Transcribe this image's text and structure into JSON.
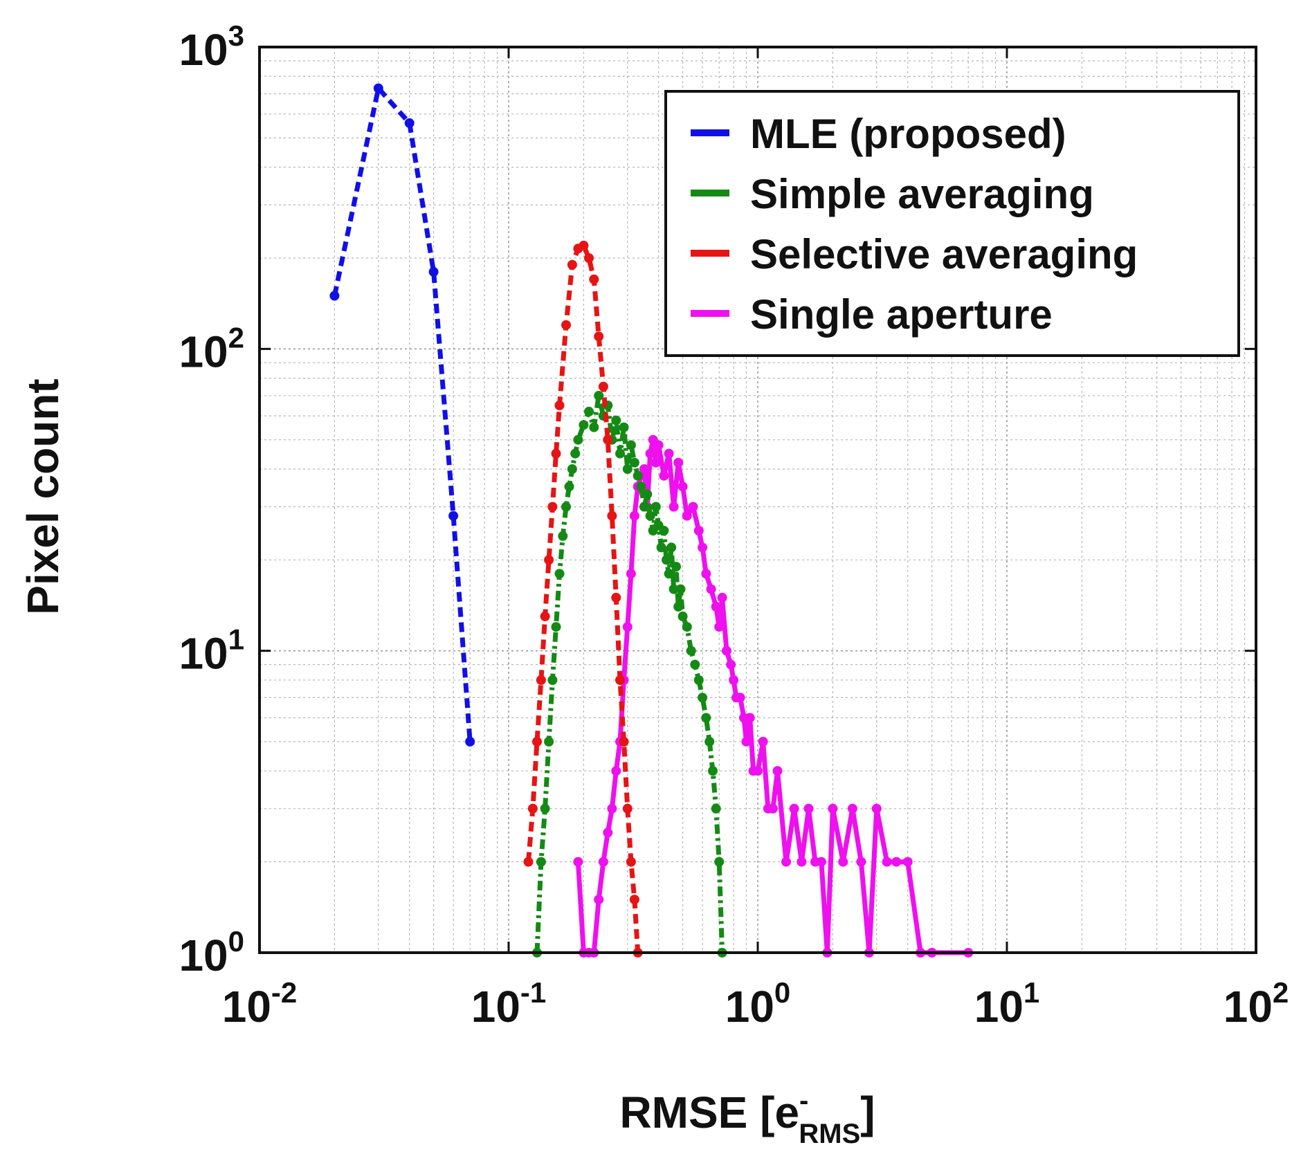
{
  "chart_data": {
    "type": "line",
    "title": "",
    "xlabel_main": "RMSE [e",
    "xlabel_sup": "-",
    "xlabel_sub": "RMS",
    "xlabel_close": "]",
    "ylabel": "Pixel count",
    "xscale": "log",
    "yscale": "log",
    "xlim": [
      0.01,
      100
    ],
    "ylim": [
      1,
      1000
    ],
    "grid": true,
    "legend_position": "top-right",
    "x_ticks": [
      {
        "value": 0.01,
        "base": "10",
        "exp": "-2"
      },
      {
        "value": 0.1,
        "base": "10",
        "exp": "-1"
      },
      {
        "value": 1,
        "base": "10",
        "exp": "0"
      },
      {
        "value": 10,
        "base": "10",
        "exp": "1"
      },
      {
        "value": 100,
        "base": "10",
        "exp": "2"
      }
    ],
    "y_ticks": [
      {
        "value": 1,
        "base": "10",
        "exp": "0"
      },
      {
        "value": 10,
        "base": "10",
        "exp": "1"
      },
      {
        "value": 100,
        "base": "10",
        "exp": "2"
      },
      {
        "value": 1000,
        "base": "10",
        "exp": "3"
      }
    ],
    "series": [
      {
        "name": "MLE (proposed)",
        "color": "#1010e6",
        "style": "dashed",
        "x": [
          0.02,
          0.03,
          0.04,
          0.05,
          0.06,
          0.07
        ],
        "y": [
          150,
          730,
          560,
          180,
          28,
          5
        ]
      },
      {
        "name": "Simple averaging",
        "color": "#148a14",
        "style": "dashdot",
        "x": [
          0.13,
          0.135,
          0.14,
          0.145,
          0.15,
          0.155,
          0.16,
          0.165,
          0.17,
          0.175,
          0.18,
          0.185,
          0.19,
          0.2,
          0.21,
          0.22,
          0.23,
          0.24,
          0.25,
          0.26,
          0.27,
          0.28,
          0.29,
          0.3,
          0.31,
          0.32,
          0.33,
          0.34,
          0.35,
          0.36,
          0.37,
          0.38,
          0.39,
          0.4,
          0.41,
          0.42,
          0.43,
          0.44,
          0.45,
          0.46,
          0.47,
          0.48,
          0.49,
          0.5,
          0.52,
          0.54,
          0.56,
          0.58,
          0.6,
          0.62,
          0.64,
          0.66,
          0.68,
          0.7,
          0.72
        ],
        "y": [
          1,
          2,
          3,
          5,
          8,
          12,
          18,
          24,
          30,
          35,
          40,
          45,
          50,
          56,
          62,
          55,
          70,
          60,
          65,
          50,
          58,
          45,
          55,
          40,
          48,
          42,
          38,
          35,
          30,
          33,
          28,
          25,
          30,
          26,
          22,
          25,
          20,
          18,
          22,
          16,
          19,
          14,
          16,
          13,
          12,
          10,
          9,
          8,
          7,
          6,
          5,
          4,
          3,
          2,
          1
        ]
      },
      {
        "name": "Selective averaging",
        "color": "#e61414",
        "style": "dashed",
        "x": [
          0.12,
          0.125,
          0.13,
          0.135,
          0.14,
          0.145,
          0.15,
          0.155,
          0.16,
          0.17,
          0.18,
          0.19,
          0.2,
          0.21,
          0.22,
          0.23,
          0.24,
          0.25,
          0.26,
          0.27,
          0.28,
          0.29,
          0.3,
          0.31,
          0.32,
          0.33
        ],
        "y": [
          2,
          3,
          5,
          8,
          13,
          20,
          30,
          45,
          65,
          120,
          190,
          215,
          220,
          200,
          170,
          110,
          75,
          50,
          28,
          15,
          8,
          5,
          3,
          2,
          1.5,
          1
        ]
      },
      {
        "name": "Single aperture",
        "color": "#ee10ee",
        "style": "solid",
        "x": [
          0.19,
          0.2,
          0.21,
          0.22,
          0.23,
          0.24,
          0.25,
          0.26,
          0.27,
          0.28,
          0.29,
          0.3,
          0.31,
          0.32,
          0.33,
          0.34,
          0.35,
          0.36,
          0.37,
          0.38,
          0.39,
          0.4,
          0.42,
          0.44,
          0.46,
          0.48,
          0.5,
          0.52,
          0.55,
          0.58,
          0.6,
          0.62,
          0.65,
          0.68,
          0.7,
          0.72,
          0.75,
          0.78,
          0.8,
          0.82,
          0.85,
          0.88,
          0.9,
          0.93,
          0.96,
          1.0,
          1.05,
          1.1,
          1.15,
          1.2,
          1.3,
          1.4,
          1.5,
          1.6,
          1.7,
          1.8,
          1.9,
          2.0,
          2.2,
          2.4,
          2.6,
          2.8,
          3.0,
          3.3,
          3.6,
          4.0,
          4.5,
          5.0,
          7.0
        ],
        "y": [
          2,
          1,
          1,
          1,
          1.5,
          2,
          2.5,
          3,
          4,
          5,
          8,
          12,
          18,
          28,
          35,
          38,
          40,
          30,
          45,
          50,
          42,
          48,
          38,
          45,
          30,
          42,
          35,
          28,
          30,
          25,
          22,
          18,
          16,
          14,
          12,
          15,
          10,
          9,
          8,
          7,
          7,
          6,
          5,
          6,
          4,
          4,
          5,
          3,
          3,
          4,
          2,
          3,
          2,
          3,
          2,
          2,
          1,
          3,
          2,
          3,
          2,
          1,
          3,
          2,
          2,
          2,
          1,
          1,
          1
        ]
      }
    ]
  }
}
